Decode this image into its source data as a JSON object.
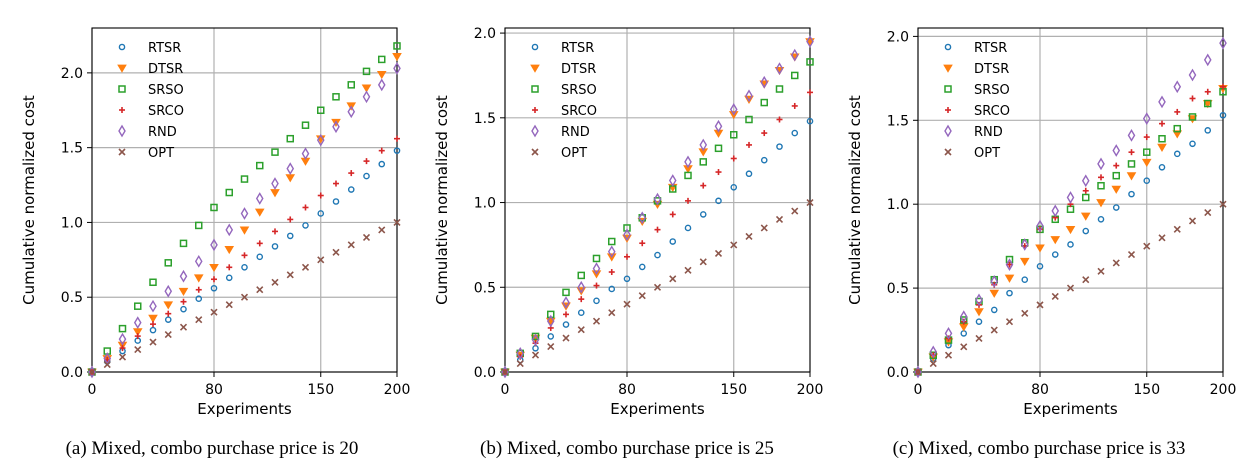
{
  "series_styles": {
    "RTSR": {
      "color": "#1f77b4",
      "marker": "ring"
    },
    "DTSR": {
      "color": "#ff7f0e",
      "marker": "triangle-down"
    },
    "SRSO": {
      "color": "#2ca02c",
      "marker": "square"
    },
    "SRCO": {
      "color": "#d62728",
      "marker": "plus"
    },
    "RND": {
      "color": "#9467bd",
      "marker": "diamond"
    },
    "OPT": {
      "color": "#8c564b",
      "marker": "x"
    }
  },
  "chart_data": [
    {
      "type": "scatter",
      "caption": "(a) Mixed, combo purchase price is 20",
      "xlabel": "Experiments",
      "ylabel": "Cumulative normalized cost",
      "xlim": [
        0,
        200
      ],
      "ylim": [
        0,
        2.3
      ],
      "xticks": [
        0,
        80,
        150,
        200
      ],
      "yticks": [
        0.0,
        0.5,
        1.0,
        1.5,
        2.0
      ],
      "ytick_labels": [
        "0.0",
        "0.5",
        "1.0",
        "1.5",
        "2.0"
      ],
      "grid": true,
      "legend": "top-left",
      "x": [
        0,
        10,
        20,
        30,
        40,
        50,
        60,
        70,
        80,
        90,
        100,
        110,
        120,
        130,
        140,
        150,
        160,
        170,
        180,
        190,
        200
      ],
      "series": [
        {
          "name": "RTSR",
          "values": [
            0,
            0.07,
            0.14,
            0.21,
            0.28,
            0.35,
            0.42,
            0.49,
            0.56,
            0.63,
            0.7,
            0.77,
            0.84,
            0.91,
            0.98,
            1.06,
            1.14,
            1.22,
            1.31,
            1.39,
            1.48
          ]
        },
        {
          "name": "DTSR",
          "values": [
            0,
            0.09,
            0.18,
            0.27,
            0.36,
            0.45,
            0.54,
            0.63,
            0.7,
            0.82,
            0.95,
            1.07,
            1.2,
            1.3,
            1.41,
            1.56,
            1.67,
            1.78,
            1.9,
            1.99,
            2.11
          ]
        },
        {
          "name": "SRSO",
          "values": [
            0,
            0.14,
            0.29,
            0.44,
            0.6,
            0.73,
            0.86,
            0.98,
            1.1,
            1.2,
            1.29,
            1.38,
            1.47,
            1.56,
            1.65,
            1.75,
            1.84,
            1.92,
            2.01,
            2.09,
            2.18
          ]
        },
        {
          "name": "SRCO",
          "values": [
            0,
            0.08,
            0.16,
            0.24,
            0.32,
            0.39,
            0.47,
            0.55,
            0.62,
            0.7,
            0.78,
            0.86,
            0.94,
            1.02,
            1.1,
            1.18,
            1.26,
            1.33,
            1.41,
            1.48,
            1.56
          ]
        },
        {
          "name": "RND",
          "values": [
            0,
            0.09,
            0.22,
            0.33,
            0.44,
            0.54,
            0.64,
            0.74,
            0.85,
            0.95,
            1.06,
            1.16,
            1.26,
            1.36,
            1.46,
            1.55,
            1.64,
            1.74,
            1.84,
            1.92,
            2.03
          ]
        },
        {
          "name": "OPT",
          "values": [
            0,
            0.05,
            0.1,
            0.15,
            0.2,
            0.25,
            0.3,
            0.35,
            0.4,
            0.45,
            0.5,
            0.55,
            0.6,
            0.65,
            0.7,
            0.75,
            0.8,
            0.85,
            0.9,
            0.95,
            1.0
          ]
        }
      ]
    },
    {
      "type": "scatter",
      "caption": "(b) Mixed, combo purchase price is 25",
      "xlabel": "Experiments",
      "ylabel": "Cumulative normalized cost",
      "xlim": [
        0,
        200
      ],
      "ylim": [
        0,
        2.03
      ],
      "xticks": [
        0,
        80,
        150,
        200
      ],
      "yticks": [
        0.0,
        0.5,
        1.0,
        1.5,
        2.0
      ],
      "ytick_labels": [
        "0.0",
        "0.5",
        "1.0",
        "1.5",
        "2.0"
      ],
      "grid": true,
      "legend": "top-left",
      "x": [
        0,
        10,
        20,
        30,
        40,
        50,
        60,
        70,
        80,
        90,
        100,
        110,
        120,
        130,
        140,
        150,
        160,
        170,
        180,
        190,
        200
      ],
      "series": [
        {
          "name": "RTSR",
          "values": [
            0,
            0.07,
            0.14,
            0.21,
            0.28,
            0.35,
            0.42,
            0.49,
            0.55,
            0.62,
            0.69,
            0.77,
            0.85,
            0.93,
            1.01,
            1.09,
            1.17,
            1.25,
            1.33,
            1.41,
            1.48
          ]
        },
        {
          "name": "DTSR",
          "values": [
            0,
            0.1,
            0.2,
            0.3,
            0.39,
            0.48,
            0.58,
            0.68,
            0.79,
            0.89,
            0.99,
            1.09,
            1.2,
            1.3,
            1.41,
            1.52,
            1.61,
            1.7,
            1.78,
            1.86,
            1.95
          ]
        },
        {
          "name": "SRSO",
          "values": [
            0,
            0.11,
            0.21,
            0.34,
            0.47,
            0.57,
            0.67,
            0.77,
            0.85,
            0.91,
            1.01,
            1.08,
            1.16,
            1.24,
            1.32,
            1.4,
            1.49,
            1.59,
            1.67,
            1.75,
            1.83
          ]
        },
        {
          "name": "SRCO",
          "values": [
            0,
            0.09,
            0.17,
            0.26,
            0.34,
            0.43,
            0.51,
            0.59,
            0.68,
            0.76,
            0.84,
            0.93,
            1.01,
            1.1,
            1.18,
            1.26,
            1.34,
            1.41,
            1.49,
            1.57,
            1.65
          ]
        },
        {
          "name": "RND",
          "values": [
            0,
            0.11,
            0.19,
            0.3,
            0.41,
            0.5,
            0.61,
            0.71,
            0.81,
            0.91,
            1.02,
            1.13,
            1.24,
            1.34,
            1.45,
            1.55,
            1.63,
            1.71,
            1.79,
            1.87,
            1.95
          ]
        },
        {
          "name": "OPT",
          "values": [
            0,
            0.05,
            0.1,
            0.15,
            0.2,
            0.25,
            0.3,
            0.35,
            0.4,
            0.45,
            0.5,
            0.55,
            0.6,
            0.65,
            0.7,
            0.75,
            0.8,
            0.85,
            0.9,
            0.95,
            1.0
          ]
        }
      ]
    },
    {
      "type": "scatter",
      "caption": "(c) Mixed, combo purchase price is 33",
      "xlabel": "Experiments",
      "ylabel": "Cumulative normalized cost",
      "xlim": [
        0,
        200
      ],
      "ylim": [
        0,
        2.05
      ],
      "xticks": [
        0,
        80,
        150,
        200
      ],
      "yticks": [
        0.0,
        0.5,
        1.0,
        1.5,
        2.0
      ],
      "ytick_labels": [
        "0.0",
        "0.5",
        "1.0",
        "1.5",
        "2.0"
      ],
      "grid": true,
      "legend": "top-left",
      "x": [
        0,
        10,
        20,
        30,
        40,
        50,
        60,
        70,
        80,
        90,
        100,
        110,
        120,
        130,
        140,
        150,
        160,
        170,
        180,
        190,
        200
      ],
      "series": [
        {
          "name": "RTSR",
          "values": [
            0,
            0.08,
            0.16,
            0.23,
            0.3,
            0.37,
            0.47,
            0.55,
            0.63,
            0.7,
            0.76,
            0.84,
            0.91,
            0.98,
            1.06,
            1.14,
            1.22,
            1.3,
            1.36,
            1.44,
            1.53
          ]
        },
        {
          "name": "DTSR",
          "values": [
            0,
            0.09,
            0.18,
            0.27,
            0.36,
            0.47,
            0.56,
            0.66,
            0.74,
            0.79,
            0.85,
            0.93,
            1.01,
            1.09,
            1.17,
            1.25,
            1.34,
            1.42,
            1.51,
            1.6,
            1.69
          ]
        },
        {
          "name": "SRSO",
          "values": [
            0,
            0.1,
            0.19,
            0.31,
            0.42,
            0.55,
            0.67,
            0.77,
            0.85,
            0.91,
            0.97,
            1.04,
            1.11,
            1.17,
            1.24,
            1.31,
            1.39,
            1.45,
            1.52,
            1.6,
            1.67
          ]
        },
        {
          "name": "SRCO",
          "values": [
            0,
            0.1,
            0.2,
            0.3,
            0.4,
            0.52,
            0.64,
            0.75,
            0.85,
            0.92,
            1.0,
            1.08,
            1.16,
            1.23,
            1.31,
            1.4,
            1.48,
            1.55,
            1.63,
            1.67,
            1.7
          ]
        },
        {
          "name": "RND",
          "values": [
            0,
            0.12,
            0.23,
            0.33,
            0.43,
            0.54,
            0.64,
            0.76,
            0.87,
            0.96,
            1.04,
            1.14,
            1.24,
            1.32,
            1.41,
            1.51,
            1.61,
            1.7,
            1.77,
            1.86,
            1.96
          ]
        },
        {
          "name": "OPT",
          "values": [
            0,
            0.05,
            0.1,
            0.15,
            0.2,
            0.25,
            0.3,
            0.35,
            0.4,
            0.45,
            0.5,
            0.55,
            0.6,
            0.65,
            0.7,
            0.75,
            0.8,
            0.85,
            0.9,
            0.95,
            1.0
          ]
        }
      ]
    }
  ]
}
